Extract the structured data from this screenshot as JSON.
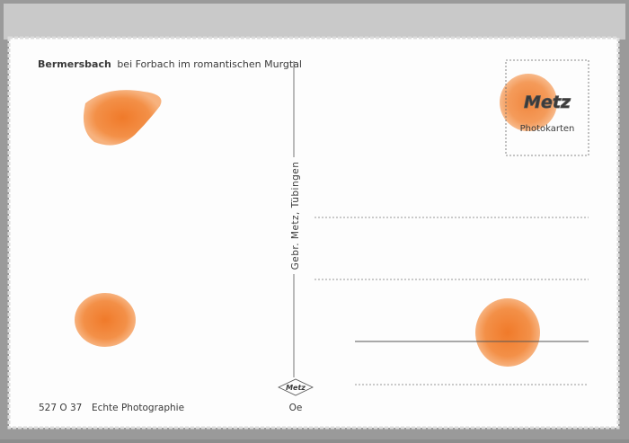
{
  "caption": {
    "place": "Bermersbach",
    "rest": "bei Forbach im romantischen Murgtal"
  },
  "publisher": "Gebr. Metz, Tübingen",
  "stamp_box": {
    "logo": "Metz",
    "label": "Photokarten"
  },
  "footer": {
    "code": "527 O 37",
    "note": "Echte Photographie",
    "logo": "Metz",
    "mark": "Oe"
  }
}
